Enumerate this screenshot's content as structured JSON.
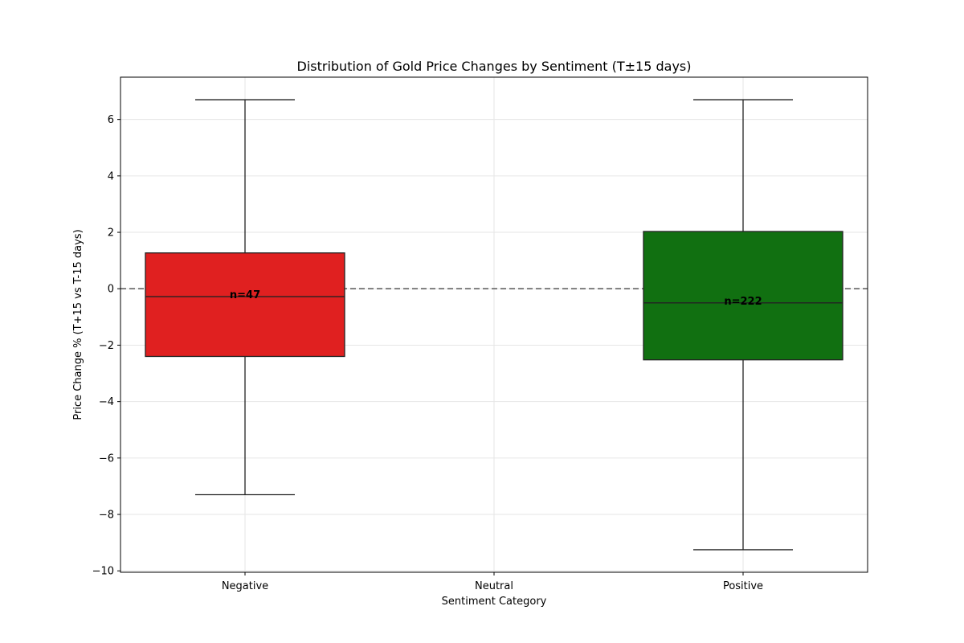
{
  "chart_data": {
    "type": "box",
    "title": "Distribution of Gold Price Changes by Sentiment (T±15 days)",
    "xlabel": "Sentiment Category",
    "ylabel": "Price Change % (T+15 vs T-15 days)",
    "ylim": [
      -10.05,
      7.5
    ],
    "yticks": [
      -10,
      -8,
      -6,
      -4,
      -2,
      0,
      2,
      4,
      6
    ],
    "ytick_labels": [
      "−10",
      "−8",
      "−6",
      "−4",
      "−2",
      "0",
      "2",
      "4",
      "6"
    ],
    "categories": [
      "Negative",
      "Neutral",
      "Positive"
    ],
    "grid": true,
    "reference_line": {
      "y": 0,
      "style": "dashed",
      "color": "#555555"
    },
    "boxes": [
      {
        "category": "Negative",
        "whisker_low": -7.3,
        "q1": -2.4,
        "median": -0.28,
        "q3": 1.27,
        "whisker_high": 6.7,
        "n_label": "n=47",
        "color": "#e02020"
      },
      {
        "category": "Positive",
        "whisker_low": -9.25,
        "q1": -2.52,
        "median": -0.5,
        "q3": 2.03,
        "whisker_high": 6.7,
        "n_label": "n=222",
        "color": "#117011"
      }
    ]
  }
}
